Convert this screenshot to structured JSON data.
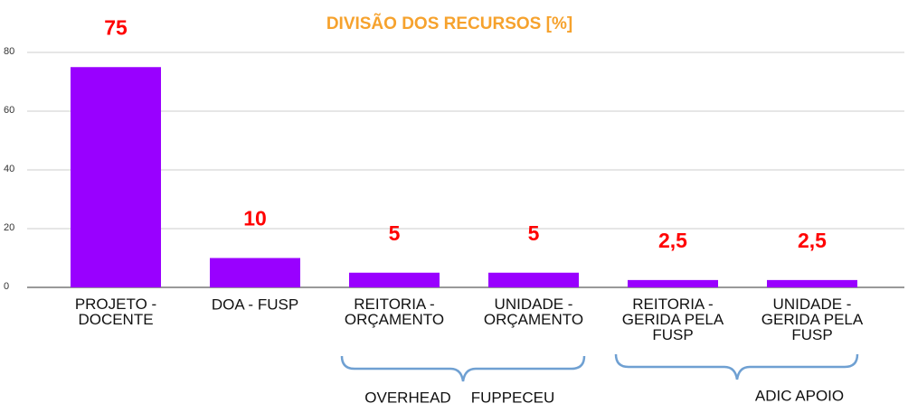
{
  "chart_data": {
    "type": "bar",
    "title": "DIVISÃO DOS RECURSOS [%]",
    "categories": [
      "PROJETO -\nDOCENTE",
      "DOA - FUSP",
      "REITORIA -\nORÇAMENTO",
      "UNIDADE -\nORÇAMENTO",
      "REITORIA -\nGERIDA PELA\nFUSP",
      "UNIDADE -\nGERIDA PELA\nFUSP"
    ],
    "values": [
      75,
      10,
      5,
      5,
      2.5,
      2.5
    ],
    "value_labels": [
      "75",
      "10",
      "5",
      "5",
      "2,5",
      "2,5"
    ],
    "color": "#9900ff",
    "ylim": [
      0,
      80
    ],
    "yticks": [
      0,
      20,
      40,
      60,
      80
    ],
    "grid": true,
    "annotations": [
      "OVERHEAD",
      "FUPPECEU",
      "ADIC APOIO"
    ]
  }
}
